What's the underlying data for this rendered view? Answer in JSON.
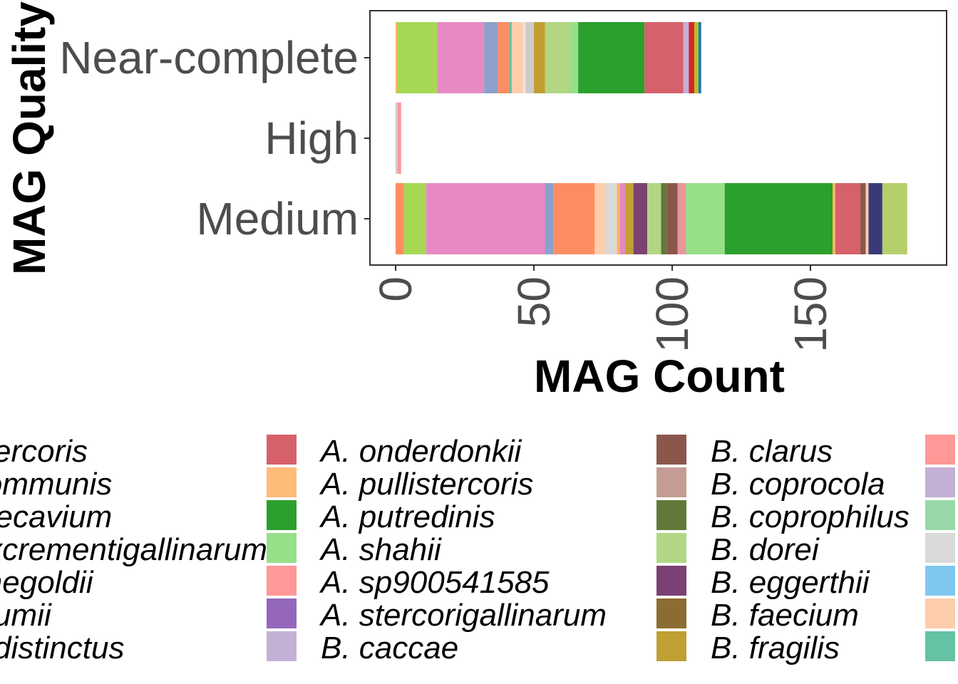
{
  "chart_data": {
    "type": "bar",
    "orientation": "horizontal",
    "stacked": true,
    "title": "",
    "xlabel": "MAG Count",
    "ylabel": "MAG Quality",
    "xlim": [
      -1,
      193
    ],
    "xticks": [
      0,
      50,
      100,
      150
    ],
    "categories": [
      "Near-complete",
      "High",
      "Medium"
    ],
    "grid": false,
    "legend_position": "bottom",
    "bars": [
      {
        "category": "Near-complete",
        "segments": [
          {
            "value": 0.5,
            "color": "#fdb462"
          },
          {
            "value": 14.5,
            "color": "#a6d854"
          },
          {
            "value": 17,
            "color": "#e78ac3"
          },
          {
            "value": 5,
            "color": "#8da0cb"
          },
          {
            "value": 4,
            "color": "#fc8d62"
          },
          {
            "value": 1,
            "color": "#66c2a5"
          },
          {
            "value": 4,
            "color": "#fdcdac"
          },
          {
            "value": 1,
            "color": "#f1e2cc"
          },
          {
            "value": 3,
            "color": "#cccccc"
          },
          {
            "value": 4,
            "color": "#c19f33"
          },
          {
            "value": 9,
            "color": "#b2d683"
          },
          {
            "value": 3,
            "color": "#98df8a"
          },
          {
            "value": 24,
            "color": "#2ca02c"
          },
          {
            "value": 14,
            "color": "#d6616b"
          },
          {
            "value": 2,
            "color": "#c5b0d5"
          },
          {
            "value": 2,
            "color": "#d62728"
          },
          {
            "value": 1.5,
            "color": "#bcbd22"
          },
          {
            "value": 1,
            "color": "#1f77b4"
          }
        ]
      },
      {
        "category": "High",
        "segments": [
          {
            "value": 0.7,
            "color": "#cccccc"
          },
          {
            "value": 1.3,
            "color": "#ff9896"
          }
        ]
      },
      {
        "category": "Medium",
        "segments": [
          {
            "value": 3,
            "color": "#fc8d62"
          },
          {
            "value": 8,
            "color": "#a6d854"
          },
          {
            "value": 43,
            "color": "#e78ac3"
          },
          {
            "value": 3,
            "color": "#8da0cb"
          },
          {
            "value": 15,
            "color": "#fc8d62"
          },
          {
            "value": 4,
            "color": "#fdcdac"
          },
          {
            "value": 4,
            "color": "#d9d9d9"
          },
          {
            "value": 1,
            "color": "#fdb462"
          },
          {
            "value": 2,
            "color": "#e78ac3"
          },
          {
            "value": 3,
            "color": "#c19f33"
          },
          {
            "value": 5,
            "color": "#7b4173"
          },
          {
            "value": 5,
            "color": "#b2d683"
          },
          {
            "value": 2,
            "color": "#637939"
          },
          {
            "value": 4,
            "color": "#8c564b"
          },
          {
            "value": 3,
            "color": "#e7969c"
          },
          {
            "value": 14,
            "color": "#98df8a"
          },
          {
            "value": 39,
            "color": "#2ca02c"
          },
          {
            "value": 1,
            "color": "#fdb462"
          },
          {
            "value": 9,
            "color": "#d6616b"
          },
          {
            "value": 2,
            "color": "#8c564b"
          },
          {
            "value": 1,
            "color": "#fdcdac"
          },
          {
            "value": 5,
            "color": "#393b79"
          },
          {
            "value": 9,
            "color": "#b5cf6b"
          }
        ]
      }
    ],
    "legend": [
      {
        "label": "A. stercoris",
        "color": "#aec7e8",
        "clipped": true
      },
      {
        "label": "A. communis",
        "color": "#ffbb78",
        "clipped": true
      },
      {
        "label": "A. faecavium",
        "color": "#98df8a",
        "clipped": true
      },
      {
        "label": "A. excrementigallinarum",
        "color": "#ff9896",
        "clipped": true
      },
      {
        "label": "A. finegoldii",
        "color": "#c5b0d5",
        "clipped": true
      },
      {
        "label": "A. ihumii",
        "color": "#c49c94",
        "clipped": true
      },
      {
        "label": "A. indistinctus",
        "color": "#f7b6d2",
        "clipped": true
      },
      {
        "label": "A. onderdonkii",
        "color": "#d6616b"
      },
      {
        "label": "A. pullistercoris",
        "color": "#ffbb78"
      },
      {
        "label": "A. putredinis",
        "color": "#2ca02c"
      },
      {
        "label": "A. shahii",
        "color": "#98df8a"
      },
      {
        "label": "A. sp900541585",
        "color": "#ff9896"
      },
      {
        "label": "A. stercorigallinarum",
        "color": "#9467bd"
      },
      {
        "label": "B. caccae",
        "color": "#c5b0d5"
      },
      {
        "label": "B. clarus",
        "color": "#8c564b"
      },
      {
        "label": "B. coprocola",
        "color": "#c49c94"
      },
      {
        "label": "B. coprophilus",
        "color": "#637939"
      },
      {
        "label": "B. dorei",
        "color": "#b2d683"
      },
      {
        "label": "B. eggerthii",
        "color": "#7b4173"
      },
      {
        "label": "B. faecium",
        "color": "#8c6d31"
      },
      {
        "label": "B. fragilis",
        "color": "#c19f33"
      },
      {
        "color": "#ff9896"
      },
      {
        "color": "#c5b0d5"
      },
      {
        "color": "#98d8a8"
      },
      {
        "color": "#d9d9d9"
      },
      {
        "color": "#7ec8f0"
      },
      {
        "color": "#fdcdac"
      },
      {
        "color": "#66c2a5"
      }
    ]
  }
}
